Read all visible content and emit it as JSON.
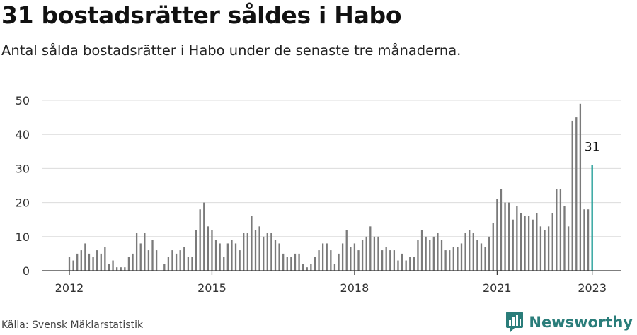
{
  "header": {
    "title": "31 bostadsrätter såldes i Habo",
    "subtitle": "Antal sålda bostadsrätter i Habo under de senaste tre månaderna."
  },
  "footer": {
    "source": "Källa: Svensk Mäklarstatistik",
    "brand": "Newsworthy",
    "brand_icon": "newsworthy-logo-icon"
  },
  "colors": {
    "bar": "#7a7a7a",
    "highlight": "#1a9a94",
    "grid": "#dcdcdc",
    "axis": "#555555",
    "brand": "#2a7d7a"
  },
  "chart_data": {
    "type": "bar",
    "title": "31 bostadsrätter såldes i Habo",
    "subtitle": "Antal sålda bostadsrätter i Habo under de senaste tre månaderna.",
    "xlabel": "",
    "ylabel": "",
    "ylim": [
      0,
      50
    ],
    "yticks": [
      0,
      10,
      20,
      30,
      40,
      50
    ],
    "xticks": [
      {
        "label": "2012",
        "index": 0
      },
      {
        "label": "2015",
        "index": 36
      },
      {
        "label": "2018",
        "index": 72
      },
      {
        "label": "2021",
        "index": 108
      },
      {
        "label": "2023",
        "index": 132
      }
    ],
    "grid": true,
    "highlight_index": 132,
    "highlight_label": "31",
    "values": [
      4,
      3,
      5,
      6,
      8,
      5,
      4,
      6,
      5,
      7,
      2,
      3,
      1,
      1,
      1,
      4,
      5,
      11,
      8,
      11,
      6,
      9,
      6,
      0,
      2,
      4,
      6,
      5,
      6,
      7,
      4,
      4,
      12,
      18,
      20,
      13,
      12,
      9,
      8,
      4,
      8,
      9,
      8,
      6,
      11,
      11,
      16,
      12,
      13,
      10,
      11,
      11,
      9,
      8,
      5,
      4,
      4,
      5,
      5,
      2,
      1,
      2,
      4,
      6,
      8,
      8,
      6,
      2,
      5,
      8,
      12,
      7,
      8,
      6,
      9,
      10,
      13,
      10,
      10,
      6,
      7,
      6,
      6,
      3,
      5,
      3,
      4,
      4,
      9,
      12,
      10,
      9,
      10,
      11,
      9,
      6,
      6,
      7,
      7,
      8,
      11,
      12,
      11,
      9,
      8,
      7,
      10,
      14,
      21,
      24,
      20,
      20,
      15,
      19,
      17,
      16,
      16,
      15,
      17,
      13,
      12,
      13,
      17,
      24,
      24,
      19,
      13,
      44,
      45,
      49,
      18,
      18,
      31
    ]
  }
}
